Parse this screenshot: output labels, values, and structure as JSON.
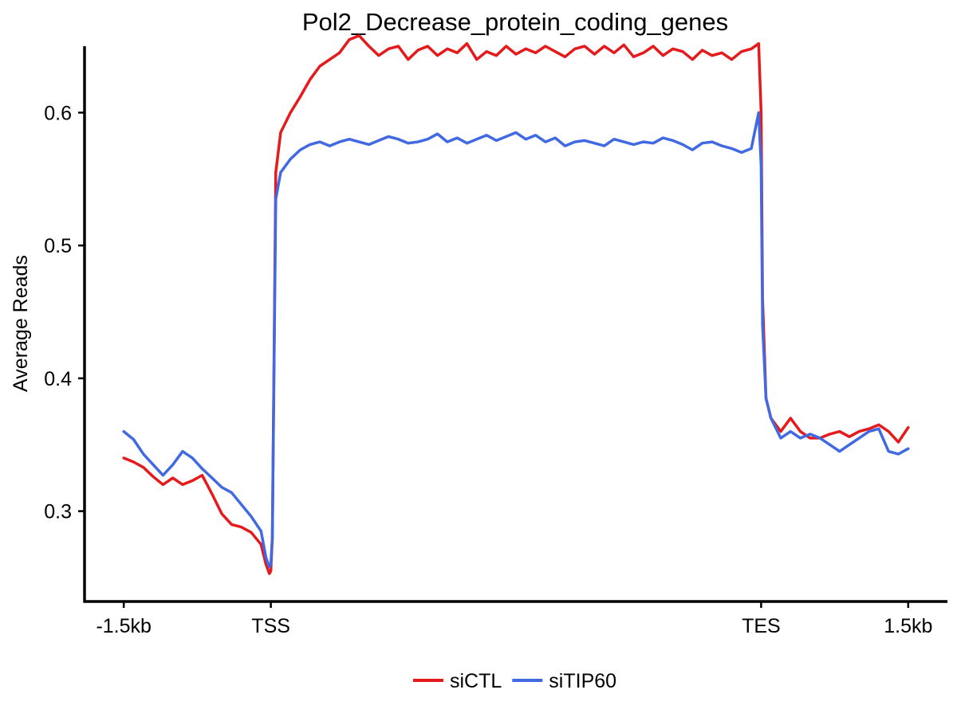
{
  "chart_data": {
    "type": "line",
    "title": "Pol2_Decrease_protein_coding_genes",
    "xlabel": "",
    "ylabel": "Average Reads",
    "x_ticks": [
      {
        "pos": 0,
        "label": "-1.5kb"
      },
      {
        "pos": 300,
        "label": "TSS"
      },
      {
        "pos": 1300,
        "label": "TES"
      },
      {
        "pos": 1600,
        "label": "1.5kb"
      }
    ],
    "y_ticks": [
      0.3,
      0.4,
      0.5,
      0.6
    ],
    "y_tick_labels": [
      "0.3",
      "0.4",
      "0.5",
      "0.6"
    ],
    "xlim": [
      -80,
      1680
    ],
    "ylim": [
      0.232,
      0.65
    ],
    "grid": false,
    "legend_position": "bottom",
    "series": [
      {
        "name": "siCTL",
        "color": "#E41A1C",
        "x": [
          0,
          20,
          40,
          60,
          80,
          100,
          120,
          140,
          160,
          180,
          200,
          220,
          240,
          260,
          280,
          290,
          297,
          300,
          303,
          310,
          320,
          340,
          360,
          380,
          400,
          420,
          440,
          460,
          480,
          500,
          520,
          540,
          560,
          580,
          600,
          620,
          640,
          660,
          680,
          700,
          720,
          740,
          760,
          780,
          800,
          820,
          840,
          860,
          880,
          900,
          920,
          940,
          960,
          980,
          1000,
          1020,
          1040,
          1060,
          1080,
          1100,
          1120,
          1140,
          1160,
          1180,
          1200,
          1220,
          1240,
          1260,
          1280,
          1295,
          1300,
          1303,
          1310,
          1320,
          1340,
          1360,
          1380,
          1400,
          1420,
          1440,
          1460,
          1480,
          1500,
          1520,
          1540,
          1560,
          1580,
          1600
        ],
        "y": [
          0.34,
          0.337,
          0.333,
          0.326,
          0.32,
          0.325,
          0.32,
          0.323,
          0.327,
          0.313,
          0.298,
          0.29,
          0.288,
          0.284,
          0.275,
          0.26,
          0.253,
          0.255,
          0.28,
          0.555,
          0.585,
          0.6,
          0.612,
          0.625,
          0.635,
          0.64,
          0.645,
          0.655,
          0.658,
          0.65,
          0.643,
          0.648,
          0.65,
          0.64,
          0.647,
          0.65,
          0.643,
          0.648,
          0.645,
          0.652,
          0.64,
          0.646,
          0.643,
          0.65,
          0.644,
          0.648,
          0.645,
          0.65,
          0.646,
          0.642,
          0.648,
          0.65,
          0.644,
          0.65,
          0.645,
          0.651,
          0.642,
          0.645,
          0.65,
          0.643,
          0.648,
          0.646,
          0.64,
          0.647,
          0.643,
          0.645,
          0.64,
          0.646,
          0.648,
          0.652,
          0.6,
          0.46,
          0.385,
          0.37,
          0.36,
          0.37,
          0.36,
          0.355,
          0.355,
          0.358,
          0.36,
          0.356,
          0.36,
          0.362,
          0.365,
          0.36,
          0.352,
          0.363
        ]
      },
      {
        "name": "siTIP60",
        "color": "#4169E1",
        "x": [
          0,
          20,
          40,
          60,
          80,
          100,
          120,
          140,
          160,
          180,
          200,
          220,
          240,
          260,
          280,
          290,
          297,
          300,
          303,
          310,
          320,
          340,
          360,
          380,
          400,
          420,
          440,
          460,
          480,
          500,
          520,
          540,
          560,
          580,
          600,
          620,
          640,
          660,
          680,
          700,
          720,
          740,
          760,
          780,
          800,
          820,
          840,
          860,
          880,
          900,
          920,
          940,
          960,
          980,
          1000,
          1020,
          1040,
          1060,
          1080,
          1100,
          1120,
          1140,
          1160,
          1180,
          1200,
          1220,
          1240,
          1260,
          1280,
          1295,
          1300,
          1303,
          1310,
          1320,
          1340,
          1360,
          1380,
          1400,
          1420,
          1440,
          1460,
          1480,
          1500,
          1520,
          1540,
          1560,
          1580,
          1600
        ],
        "y": [
          0.36,
          0.354,
          0.343,
          0.335,
          0.327,
          0.335,
          0.345,
          0.34,
          0.332,
          0.325,
          0.318,
          0.314,
          0.305,
          0.296,
          0.285,
          0.265,
          0.258,
          0.26,
          0.28,
          0.535,
          0.555,
          0.565,
          0.572,
          0.576,
          0.578,
          0.575,
          0.578,
          0.58,
          0.578,
          0.576,
          0.579,
          0.582,
          0.58,
          0.577,
          0.578,
          0.58,
          0.584,
          0.578,
          0.581,
          0.577,
          0.58,
          0.583,
          0.579,
          0.582,
          0.585,
          0.58,
          0.583,
          0.578,
          0.581,
          0.575,
          0.578,
          0.579,
          0.577,
          0.575,
          0.58,
          0.578,
          0.576,
          0.578,
          0.577,
          0.581,
          0.579,
          0.576,
          0.572,
          0.577,
          0.578,
          0.575,
          0.573,
          0.57,
          0.573,
          0.6,
          0.56,
          0.44,
          0.385,
          0.37,
          0.355,
          0.36,
          0.355,
          0.358,
          0.355,
          0.35,
          0.345,
          0.35,
          0.355,
          0.36,
          0.362,
          0.345,
          0.343,
          0.347
        ]
      }
    ]
  }
}
